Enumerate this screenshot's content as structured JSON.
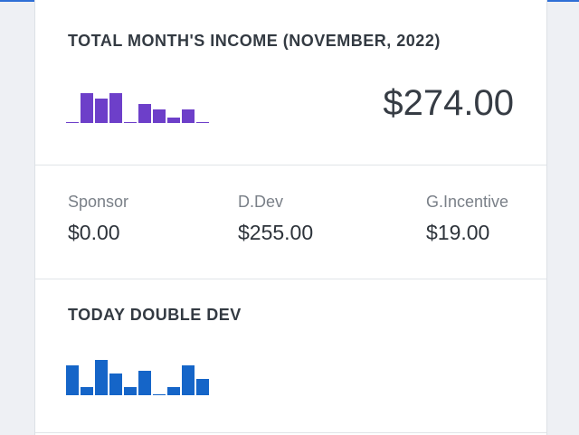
{
  "income": {
    "title": "TOTAL MONTH'S INCOME (NOVEMBER, 2022)",
    "total": "$274.00",
    "color": "#6d3fc9",
    "chart_data": {
      "type": "bar",
      "values": [
        0,
        11,
        9,
        11,
        0,
        7,
        5,
        2,
        5,
        0
      ]
    }
  },
  "breakdown": [
    {
      "label": "Sponsor",
      "value": "$0.00"
    },
    {
      "label": "D.Dev",
      "value": "$255.00"
    },
    {
      "label": "G.Incentive",
      "value": "$19.00"
    }
  ],
  "today": {
    "title": "TODAY DOUBLE DEV",
    "color": "#1565c8",
    "chart_data": {
      "type": "bar",
      "values": [
        11,
        3,
        13,
        8,
        3,
        9,
        0,
        3,
        11,
        6
      ]
    }
  }
}
